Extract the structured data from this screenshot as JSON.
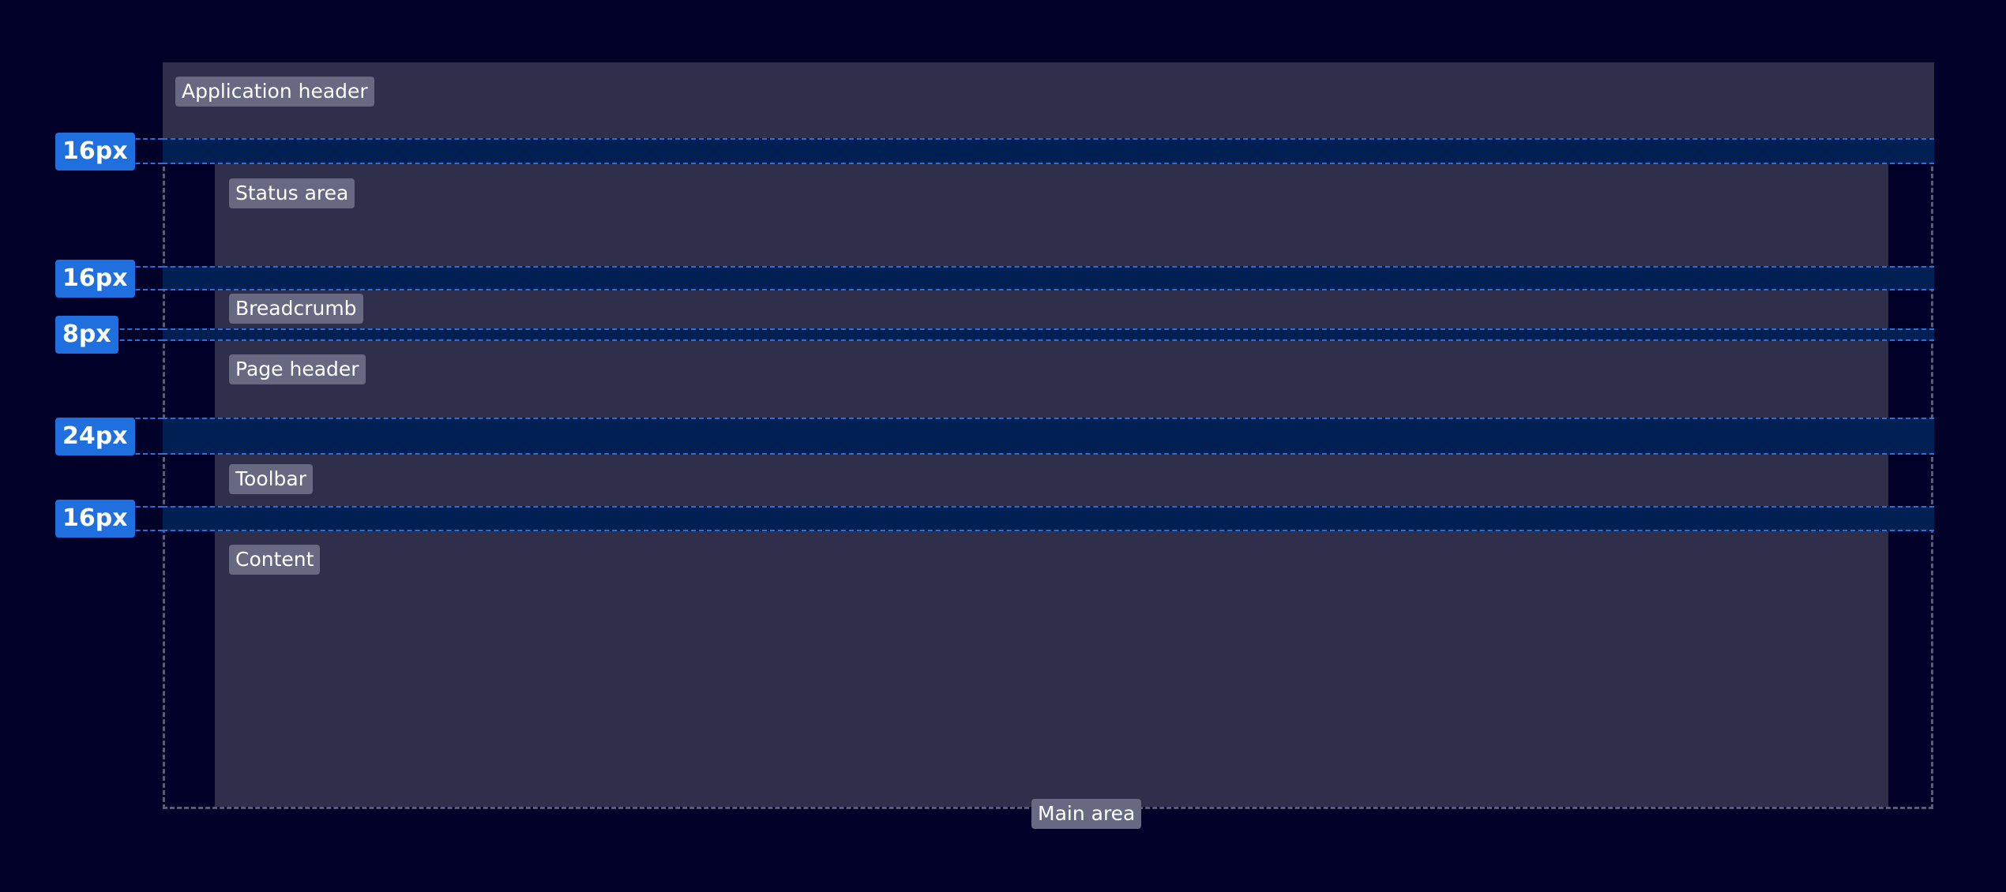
{
  "labels": {
    "app_header": "Application header",
    "status_area": "Status area",
    "breadcrumb": "Breadcrumb",
    "page_header": "Page header",
    "toolbar": "Toolbar",
    "content": "Content",
    "main_area": "Main area"
  },
  "spacings": [
    "16px",
    "16px",
    "8px",
    "24px",
    "16px"
  ],
  "colors": {
    "background": "#000028",
    "panel": "#2f2f4c",
    "spacing_band": "#001f52",
    "badge": "#1f6fde",
    "label": "#676882"
  }
}
